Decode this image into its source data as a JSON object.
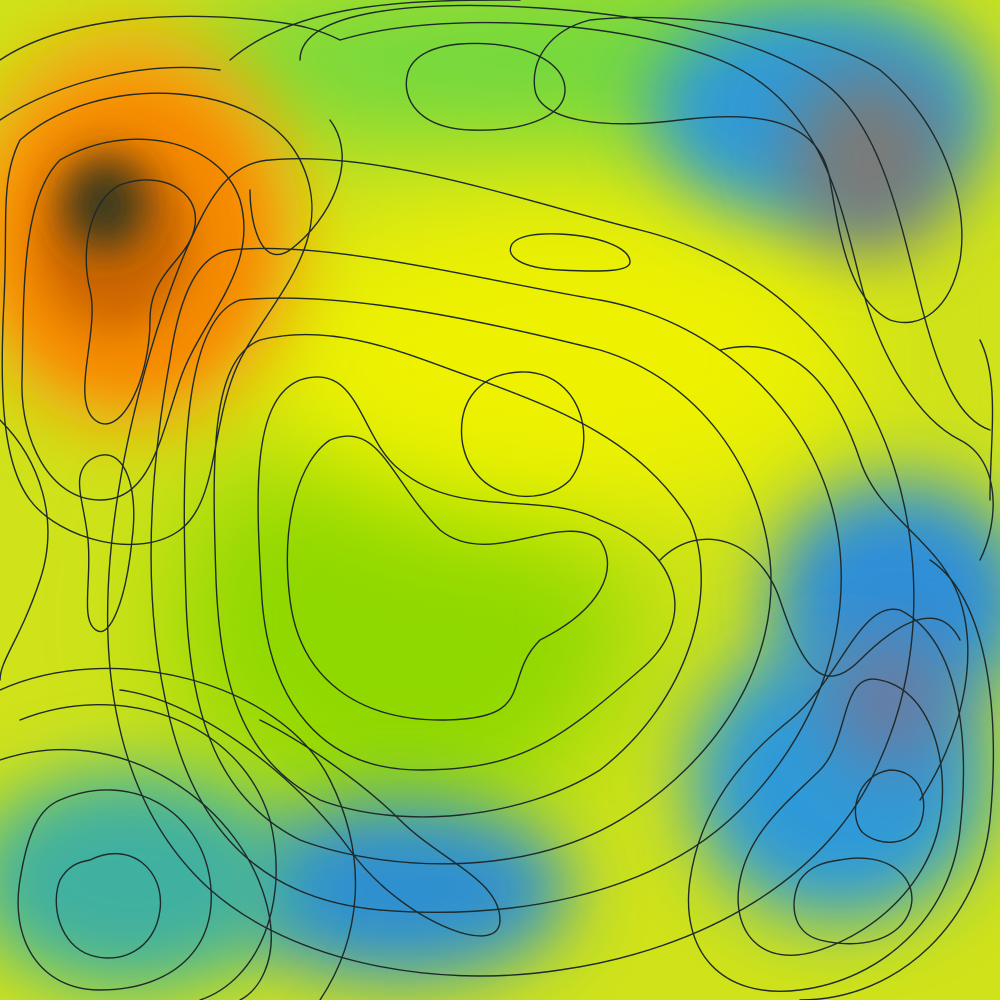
{
  "map": {
    "type": "contour-heatmap",
    "base_color": "#cfe21a",
    "contour_color": "#1e2a2a",
    "color_scale": [
      "#2f8fd8",
      "#3fb6a0",
      "#5fd33a",
      "#a8e80e",
      "#e6ef05",
      "#f5a00a",
      "#e57c00",
      "#553a18"
    ],
    "legend": "none",
    "axes": "none",
    "grid": false,
    "regions": [
      {
        "name": "peak-northwest",
        "tone": "peak",
        "colors": [
          "#3a3a1a",
          "#cc6600",
          "#f58a00",
          "#f5a00a"
        ]
      },
      {
        "name": "high-center",
        "tone": "high",
        "colors": [
          "#eef200",
          "#dff000"
        ]
      },
      {
        "name": "mid-center-left",
        "tone": "mid",
        "colors": [
          "#8fd800",
          "#9edc00"
        ]
      },
      {
        "name": "low-northeast",
        "tone": "low",
        "colors": [
          "#7a7a78",
          "#2f9ad8",
          "#40c0b0"
        ]
      },
      {
        "name": "low-east",
        "tone": "low",
        "colors": [
          "#2f8fd8",
          "#40b0c8"
        ]
      },
      {
        "name": "low-southeast",
        "tone": "low",
        "colors": [
          "#6a7aa0",
          "#2f9ad8",
          "#3fc0b0"
        ]
      },
      {
        "name": "low-south",
        "tone": "low",
        "colors": [
          "#2f90d0",
          "#40b0b0"
        ]
      },
      {
        "name": "low-southwest",
        "tone": "low",
        "colors": [
          "#40b0a0",
          "#5fd040"
        ]
      },
      {
        "name": "green-north",
        "tone": "mid",
        "colors": [
          "#55cc55",
          "#70d840"
        ]
      }
    ]
  }
}
